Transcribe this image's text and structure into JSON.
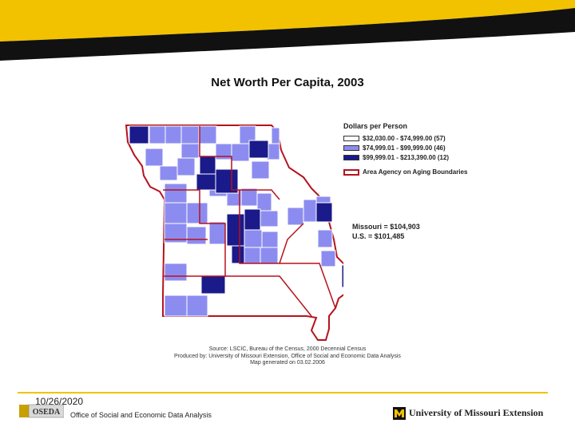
{
  "map": {
    "title": "Net Worth Per Capita, 2003"
  },
  "legend": {
    "title": "Dollars per Person",
    "items": [
      {
        "label": "$32,030.00 - $74,999.00 (57)",
        "color": "#ffffff"
      },
      {
        "label": "$74,999.01 - $99,999.00 (46)",
        "color": "#8c8cf0"
      },
      {
        "label": "$99,999.01 - $213,390.00 (12)",
        "color": "#1a1a8a"
      }
    ],
    "aging_label": "Area Agency on Aging Boundaries",
    "aging_color": "#b5131c"
  },
  "stats": {
    "missouri": "Missouri = $104,903",
    "us": "U.S. = $101,485"
  },
  "credits": {
    "source": "Source: LSCIC, Bureau of the Census, 2000 Decennial Census",
    "produced": "Produced by: University of Missouri Extension, Office of Social and Economic Data Analysis",
    "generated": "Map generated on 03.02.2006"
  },
  "footer": {
    "date": "10/26/2020",
    "oseda_logo": "OSEDA",
    "office": "Office of Social and Economic Data Analysis",
    "university": "University of Missouri Extension"
  },
  "colors": {
    "banner_yellow": "#f2c200",
    "banner_black": "#111111"
  }
}
